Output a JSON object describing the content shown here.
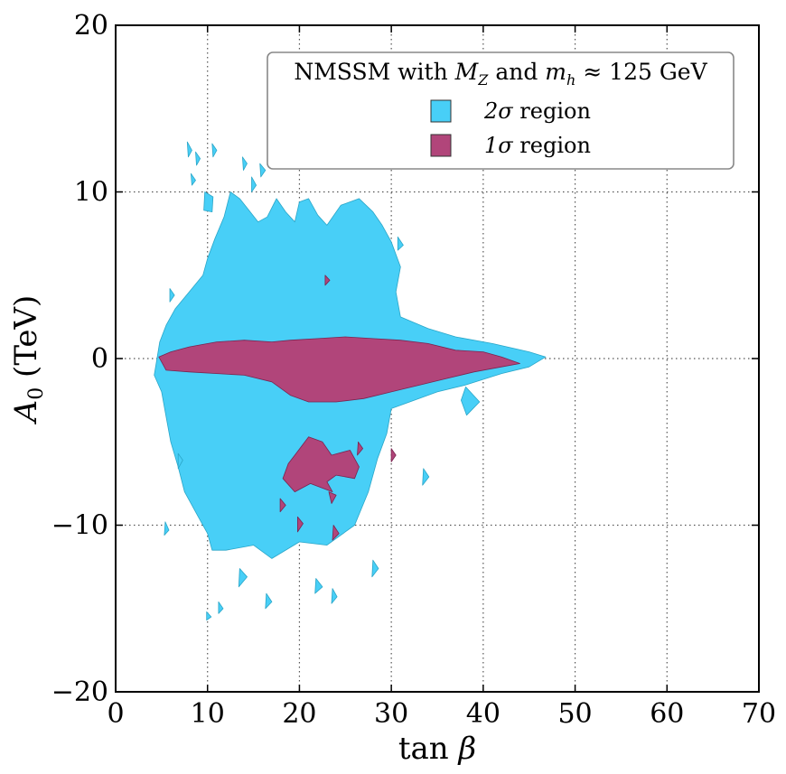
{
  "chart_data": {
    "type": "contour",
    "title": "",
    "xlabel": "tan β",
    "ylabel": "A₀ (TeV)",
    "xlim": [
      0,
      70
    ],
    "ylim": [
      -20,
      20
    ],
    "x_ticks": [
      0,
      10,
      20,
      30,
      40,
      50,
      60,
      70
    ],
    "y_ticks": [
      -20,
      -10,
      0,
      10,
      20
    ],
    "x_tick_labels": [
      "0",
      "10",
      "20",
      "30",
      "40",
      "50",
      "60",
      "70"
    ],
    "y_tick_labels": [
      "−20",
      "−10",
      "0",
      "10",
      "20"
    ],
    "grid": true,
    "legend": {
      "placement": "top-right",
      "title": "NMSSM with M_Z and m_h ≈ 125 GeV",
      "title_parts": {
        "prefix": "NMSSM with ",
        "mz_base": "M",
        "mz_sub": "Z",
        "middle": " and ",
        "mh_base": "m",
        "mh_sub": "h",
        "suffix": " ≈ 125 GeV"
      }
    },
    "series": [
      {
        "name": "2σ region",
        "label_base": "2σ",
        "label_rest": " region",
        "color": "#48cff7",
        "edge_color": "#2aa6c8",
        "main_outline": [
          [
            4.5,
            0
          ],
          [
            4.2,
            -1
          ],
          [
            5,
            -2
          ],
          [
            5.5,
            -3.5
          ],
          [
            6,
            -5
          ],
          [
            6.8,
            -6.5
          ],
          [
            7.5,
            -8
          ],
          [
            9,
            -9.5
          ],
          [
            10,
            -10.5
          ],
          [
            10.5,
            -11.5
          ],
          [
            12,
            -11.5
          ],
          [
            15,
            -11.2
          ],
          [
            17,
            -12
          ],
          [
            20,
            -11
          ],
          [
            23,
            -11.2
          ],
          [
            26,
            -10
          ],
          [
            27.5,
            -8
          ],
          [
            28.5,
            -6
          ],
          [
            29.5,
            -4.5
          ],
          [
            30,
            -3
          ],
          [
            32,
            -2.6
          ],
          [
            35,
            -2
          ],
          [
            38,
            -1.6
          ],
          [
            42,
            -0.9
          ],
          [
            45,
            -0.5
          ],
          [
            46.8,
            0.1
          ],
          [
            45,
            0.4
          ],
          [
            41,
            0.9
          ],
          [
            37,
            1.3
          ],
          [
            34,
            1.8
          ],
          [
            31,
            2.5
          ],
          [
            30.5,
            4
          ],
          [
            31,
            5.5
          ],
          [
            30,
            7
          ],
          [
            29,
            8
          ],
          [
            28,
            8.8
          ],
          [
            26.5,
            9.6
          ],
          [
            24.5,
            9.2
          ],
          [
            23,
            8
          ],
          [
            22,
            8.6
          ],
          [
            21,
            9.6
          ],
          [
            20,
            9.4
          ],
          [
            19.5,
            8.2
          ],
          [
            18.5,
            8.8
          ],
          [
            17.5,
            9.6
          ],
          [
            16.5,
            8.5
          ],
          [
            15.5,
            8.2
          ],
          [
            14.5,
            8.9
          ],
          [
            13.5,
            9.6
          ],
          [
            12.5,
            10
          ],
          [
            11.8,
            8.5
          ],
          [
            10.8,
            7.2
          ],
          [
            10,
            6
          ],
          [
            9.5,
            5
          ],
          [
            8,
            4
          ],
          [
            6.5,
            3
          ],
          [
            5.5,
            2
          ],
          [
            4.8,
            1
          ]
        ],
        "islands": [
          [
            [
              9.7,
              10.0
            ],
            [
              10.6,
              9.7
            ],
            [
              10.5,
              8.8
            ],
            [
              9.6,
              8.9
            ]
          ],
          [
            [
              7.8,
              13.0
            ],
            [
              8.3,
              12.5
            ],
            [
              7.9,
              12.1
            ]
          ],
          [
            [
              8.7,
              12.4
            ],
            [
              9.2,
              12.0
            ],
            [
              8.8,
              11.6
            ]
          ],
          [
            [
              10.5,
              12.9
            ],
            [
              11.0,
              12.5
            ],
            [
              10.6,
              12.1
            ]
          ],
          [
            [
              13.8,
              12.1
            ],
            [
              14.3,
              11.7
            ],
            [
              13.9,
              11.3
            ]
          ],
          [
            [
              15.7,
              11.7
            ],
            [
              16.3,
              11.3
            ],
            [
              15.8,
              10.9
            ]
          ],
          [
            [
              14.8,
              10.9
            ],
            [
              15.3,
              10.4
            ],
            [
              14.8,
              10.0
            ]
          ],
          [
            [
              8.2,
              11.1
            ],
            [
              8.7,
              10.7
            ],
            [
              8.3,
              10.4
            ]
          ],
          [
            [
              5.9,
              4.2
            ],
            [
              6.4,
              3.8
            ],
            [
              5.9,
              3.4
            ]
          ],
          [
            [
              5.4,
              -9.8
            ],
            [
              5.8,
              -10.3
            ],
            [
              5.3,
              -10.6
            ]
          ],
          [
            [
              9.9,
              -15.2
            ],
            [
              10.4,
              -15.5
            ],
            [
              9.9,
              -15.7
            ]
          ],
          [
            [
              11.2,
              -14.6
            ],
            [
              11.7,
              -15.0
            ],
            [
              11.2,
              -15.3
            ]
          ],
          [
            [
              16.4,
              -14.1
            ],
            [
              17.0,
              -14.6
            ],
            [
              16.3,
              -15.0
            ]
          ],
          [
            [
              21.8,
              -13.2
            ],
            [
              22.5,
              -13.7
            ],
            [
              21.7,
              -14.1
            ]
          ],
          [
            [
              23.6,
              -13.8
            ],
            [
              24.1,
              -14.3
            ],
            [
              23.5,
              -14.7
            ]
          ],
          [
            [
              33.5,
              -6.6
            ],
            [
              34.1,
              -7.1
            ],
            [
              33.4,
              -7.6
            ]
          ],
          [
            [
              38.1,
              -1.7
            ],
            [
              39.6,
              -2.6
            ],
            [
              38.2,
              -3.4
            ],
            [
              37.6,
              -2.5
            ]
          ],
          [
            [
              30.7,
              7.3
            ],
            [
              31.3,
              6.8
            ],
            [
              30.7,
              6.5
            ]
          ],
          [
            [
              6.8,
              -5.7
            ],
            [
              7.3,
              -6.1
            ],
            [
              6.8,
              -6.6
            ]
          ],
          [
            [
              28.0,
              -12.1
            ],
            [
              28.6,
              -12.6
            ],
            [
              27.9,
              -13.1
            ]
          ],
          [
            [
              13.5,
              -12.6
            ],
            [
              14.3,
              -13.1
            ],
            [
              13.4,
              -13.7
            ]
          ]
        ]
      },
      {
        "name": "1σ region",
        "label_base": "1σ",
        "label_rest": " region",
        "color": "#b1457a",
        "edge_color": "#7a2450",
        "main_outline": [
          [
            4.7,
            0.1
          ],
          [
            5.5,
            -0.7
          ],
          [
            8,
            -0.8
          ],
          [
            11,
            -0.9
          ],
          [
            14,
            -1.0
          ],
          [
            17,
            -1.4
          ],
          [
            19,
            -2.2
          ],
          [
            21,
            -2.6
          ],
          [
            24,
            -2.6
          ],
          [
            27,
            -2.4
          ],
          [
            30,
            -2.0
          ],
          [
            33,
            -1.6
          ],
          [
            36,
            -1.2
          ],
          [
            39,
            -0.8
          ],
          [
            42,
            -0.5
          ],
          [
            44,
            -0.3
          ],
          [
            42,
            0.1
          ],
          [
            40,
            0.4
          ],
          [
            37,
            0.5
          ],
          [
            34,
            0.9
          ],
          [
            31,
            1.1
          ],
          [
            28,
            1.2
          ],
          [
            25,
            1.3
          ],
          [
            22,
            1.2
          ],
          [
            19,
            1.1
          ],
          [
            17,
            1.0
          ],
          [
            14,
            1.1
          ],
          [
            11,
            1.0
          ],
          [
            8,
            0.7
          ],
          [
            6,
            0.4
          ]
        ],
        "islands": [
          [
            [
              19.5,
              -5.8
            ],
            [
              21.0,
              -4.7
            ],
            [
              22.5,
              -5.0
            ],
            [
              23.5,
              -5.8
            ],
            [
              25.5,
              -5.5
            ],
            [
              26.5,
              -6.5
            ],
            [
              26.0,
              -7.2
            ],
            [
              24.0,
              -7.0
            ],
            [
              23.0,
              -7.4
            ],
            [
              23.6,
              -8.0
            ],
            [
              21.2,
              -7.5
            ],
            [
              19.5,
              -8.0
            ],
            [
              18.2,
              -7.2
            ],
            [
              18.8,
              -6.3
            ]
          ],
          [
            [
              23.2,
              -8.0
            ],
            [
              24.0,
              -8.2
            ],
            [
              23.5,
              -8.7
            ]
          ],
          [
            [
              17.9,
              -8.4
            ],
            [
              18.5,
              -8.8
            ],
            [
              17.9,
              -9.2
            ]
          ],
          [
            [
              19.8,
              -9.5
            ],
            [
              20.4,
              -9.9
            ],
            [
              19.8,
              -10.4
            ]
          ],
          [
            [
              23.7,
              -10.0
            ],
            [
              24.3,
              -10.5
            ],
            [
              23.6,
              -10.9
            ]
          ],
          [
            [
              22.8,
              5.0
            ],
            [
              23.3,
              4.7
            ],
            [
              22.8,
              4.4
            ]
          ],
          [
            [
              26.4,
              -5.0
            ],
            [
              26.9,
              -5.4
            ],
            [
              26.3,
              -5.8
            ]
          ],
          [
            [
              30.0,
              -5.4
            ],
            [
              30.5,
              -5.8
            ],
            [
              30.0,
              -6.2
            ]
          ]
        ]
      }
    ]
  }
}
